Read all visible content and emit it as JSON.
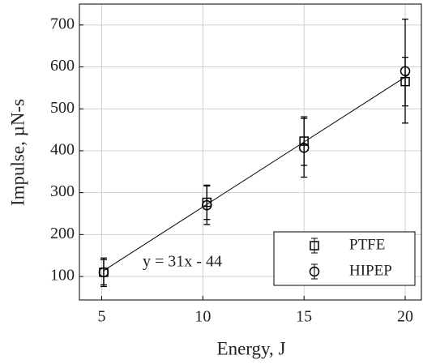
{
  "chart_data": {
    "type": "errorbar-scatter",
    "x_label": "Energy, J",
    "y_label": "Impulse, µN-s",
    "xlim": [
      3.9,
      20.8
    ],
    "xticks": [
      5,
      10,
      15,
      20
    ],
    "ylim": [
      44,
      750
    ],
    "yticks": [
      100,
      200,
      300,
      400,
      500,
      600,
      700
    ],
    "grid": true,
    "legend": "lower right",
    "series": [
      {
        "name": "PTFE",
        "marker": "square",
        "color": "#000000",
        "x": [
          5.1,
          10.2,
          15,
          20
        ],
        "values": [
          110,
          277,
          423,
          565
        ],
        "errors": [
          34,
          41,
          58,
          58
        ]
      },
      {
        "name": "HIPEP",
        "marker": "circle",
        "color": "#000000",
        "x": [
          5.1,
          10.2,
          15,
          20
        ],
        "values": [
          110,
          270,
          407,
          590
        ],
        "errors": [
          30,
          46,
          70,
          124
        ]
      }
    ],
    "fit_line": {
      "label": "y = 31x - 44",
      "x": [
        5.1,
        20.2
      ],
      "values": [
        114,
        582
      ],
      "color": "#000000"
    }
  }
}
